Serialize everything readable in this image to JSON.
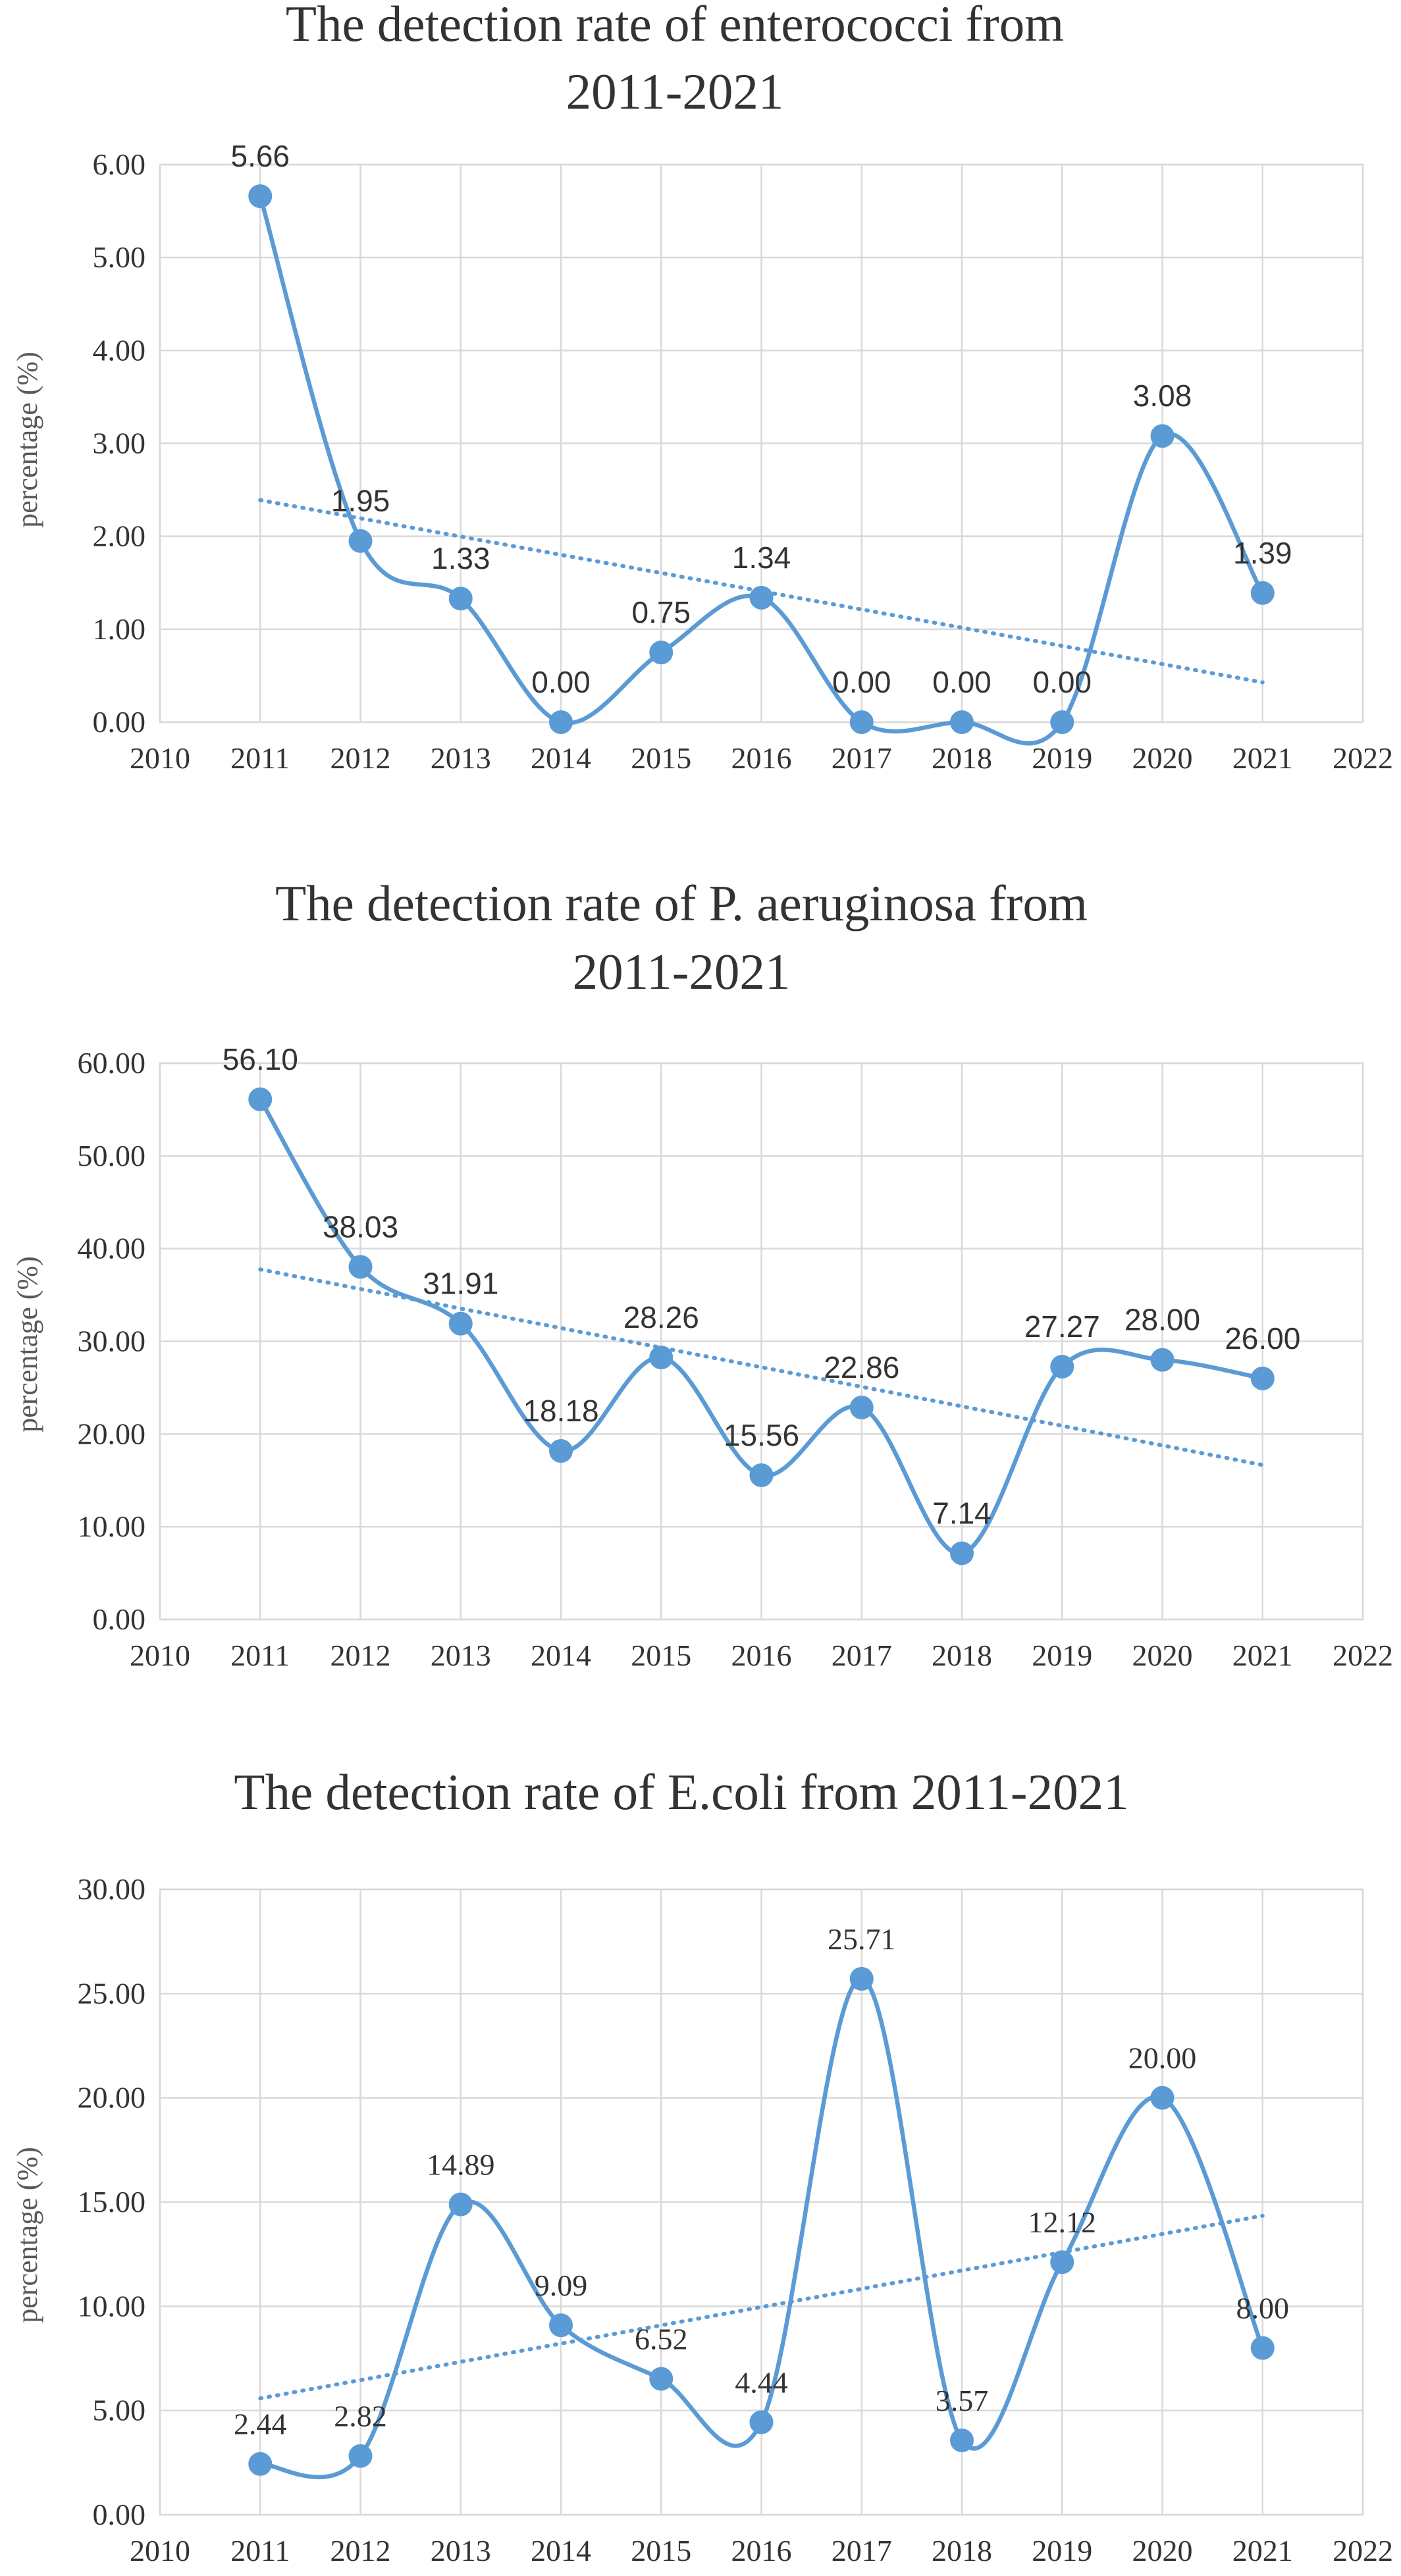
{
  "colors": {
    "series": "#5b9bd5",
    "grid": "#d9d9d9",
    "text": "#333333"
  },
  "chart_data": [
    {
      "type": "line",
      "title": "The detection rate of enterococci from 2011-2021",
      "title_lines": [
        "The detection rate of enterococci from",
        "2011-2021"
      ],
      "xlabel": "",
      "ylabel": "percentage (%)",
      "xlim": [
        2010,
        2022
      ],
      "ylim": [
        0,
        6
      ],
      "x_ticks": [
        "2010",
        "2011",
        "2012",
        "2013",
        "2014",
        "2015",
        "2016",
        "2017",
        "2018",
        "2019",
        "2020",
        "2021",
        "2022"
      ],
      "y_ticks": [
        "0.00",
        "1.00",
        "2.00",
        "3.00",
        "4.00",
        "5.00",
        "6.00"
      ],
      "grid": true,
      "smooth": true,
      "trendline": "linear",
      "label_font": "sans",
      "series": [
        {
          "x": [
            2011,
            2012,
            2013,
            2014,
            2015,
            2016,
            2017,
            2018,
            2019,
            2020,
            2021
          ],
          "values": [
            5.66,
            1.95,
            1.33,
            0.0,
            0.75,
            1.34,
            0.0,
            0.0,
            0.0,
            3.08,
            1.39
          ],
          "labels": [
            "5.66",
            "1.95",
            "1.33",
            "0.00",
            "0.75",
            "1.34",
            "0.00",
            "0.00",
            "0.00",
            "3.08",
            "1.39"
          ]
        }
      ]
    },
    {
      "type": "line",
      "title": "The detection rate of P. aeruginosa from 2011-2021",
      "title_lines": [
        "The detection rate of P. aeruginosa from",
        "2011-2021"
      ],
      "xlabel": "",
      "ylabel": "percentage (%)",
      "xlim": [
        2010,
        2022
      ],
      "ylim": [
        0,
        60
      ],
      "x_ticks": [
        "2010",
        "2011",
        "2012",
        "2013",
        "2014",
        "2015",
        "2016",
        "2017",
        "2018",
        "2019",
        "2020",
        "2021",
        "2022"
      ],
      "y_ticks": [
        "0.00",
        "10.00",
        "20.00",
        "30.00",
        "40.00",
        "50.00",
        "60.00"
      ],
      "grid": true,
      "smooth": true,
      "trendline": "linear",
      "label_font": "sans",
      "series": [
        {
          "x": [
            2011,
            2012,
            2013,
            2014,
            2015,
            2016,
            2017,
            2018,
            2019,
            2020,
            2021
          ],
          "values": [
            56.1,
            38.03,
            31.91,
            18.18,
            28.26,
            15.56,
            22.86,
            7.14,
            27.27,
            28.0,
            26.0
          ],
          "labels": [
            "56.10",
            "38.03",
            "31.91",
            "18.18",
            "28.26",
            "15.56",
            "22.86",
            "7.14",
            "27.27",
            "28.00",
            "26.00"
          ]
        }
      ]
    },
    {
      "type": "line",
      "title": "The detection rate of E.coli from 2011-2021",
      "title_lines": [
        "The detection rate of E.coli from 2011-2021"
      ],
      "xlabel": "",
      "ylabel": "percentage (%)",
      "xlim": [
        2010,
        2022
      ],
      "ylim": [
        0,
        30
      ],
      "x_ticks": [
        "2010",
        "2011",
        "2012",
        "2013",
        "2014",
        "2015",
        "2016",
        "2017",
        "2018",
        "2019",
        "2020",
        "2021",
        "2022"
      ],
      "y_ticks": [
        "0.00",
        "5.00",
        "10.00",
        "15.00",
        "20.00",
        "25.00",
        "30.00"
      ],
      "grid": true,
      "smooth": true,
      "trendline": "linear",
      "label_font": "serif",
      "series": [
        {
          "x": [
            2011,
            2012,
            2013,
            2014,
            2015,
            2016,
            2017,
            2018,
            2019,
            2020,
            2021
          ],
          "values": [
            2.44,
            2.82,
            14.89,
            9.09,
            6.52,
            4.44,
            25.71,
            3.57,
            12.12,
            20.0,
            8.0
          ],
          "labels": [
            "2.44",
            "2.82",
            "14.89",
            "9.09",
            "6.52",
            "4.44",
            "25.71",
            "3.57",
            "12.12",
            "20.00",
            "8.00"
          ]
        }
      ]
    }
  ]
}
